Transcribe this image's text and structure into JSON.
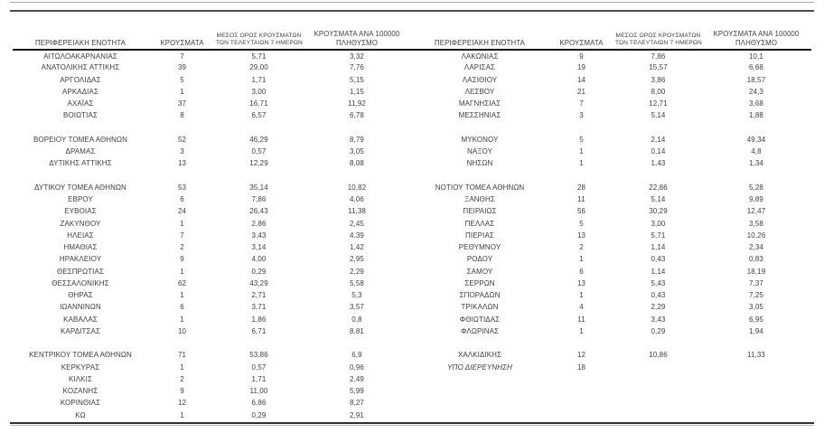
{
  "page": {
    "background": "#ffffff",
    "text_color": "#3d3d3d",
    "header_rule_color": "#151515",
    "top_rule_colors": [
      "#a8a8a8",
      "#4d4d4d"
    ],
    "bottom_rule_colors": [
      "#303030",
      "#b8b8b8"
    ]
  },
  "table": {
    "headers": {
      "region": "ΠΕΡΙΦΕΡΕΙΑΚΗ ΕΝΟΤΗΤΑ",
      "cases": "ΚΡΟΥΣΜΑΤΑ",
      "avg7_line1": "ΜΕΣΟΣ ΟΡΟΣ ΚΡΟΥΣΜΑΤΩΝ",
      "avg7_line2": "ΤΩΝ ΤΕΛΕΥΤΑΙΩΝ 7 ΗΜΕΡΩΝ",
      "per100k_line1": "ΚΡΟΥΣΜΑΤΑ ΑΝΑ 100000",
      "per100k_line2": "ΠΛΗΘΥΣΜΟ"
    },
    "italic_row_label": "ΥΠΟ ΔΙΕΡΕΥΝΗΣΗ",
    "rows": [
      [
        "ΑΙΤΩΛΟΑΚΑΡΝΑΝΙΑΣ",
        "7",
        "5,71",
        "3,32",
        "ΛΑΚΩΝΙΑΣ",
        "9",
        "7,86",
        "10,1"
      ],
      [
        "ΑΝΑΤΟΛΙΚΗΣ ΑΤΤΙΚΗΣ",
        "39",
        "29,00",
        "7,76",
        "ΛΑΡΙΣΑΣ",
        "19",
        "15,57",
        "6,68"
      ],
      [
        "ΑΡΓΟΛΙΔΑΣ",
        "5",
        "1,71",
        "5,15",
        "ΛΑΣΙΘΙΟΥ",
        "14",
        "3,86",
        "18,57"
      ],
      [
        "ΑΡΚΑΔΙΑΣ",
        "1",
        "3,00",
        "1,15",
        "ΛΕΣΒΟΥ",
        "21",
        "8,00",
        "24,3"
      ],
      [
        "ΑΧΑΪΑΣ",
        "37",
        "16,71",
        "11,92",
        "ΜΑΓΝΗΣΙΑΣ",
        "7",
        "12,71",
        "3,68"
      ],
      [
        "ΒΟΙΩΤΙΑΣ",
        "8",
        "6,57",
        "6,78",
        "ΜΕΣΣΗΝΙΑΣ",
        "3",
        "5,14",
        "1,88"
      ],
      [
        "",
        "",
        "",
        "",
        "",
        "",
        "",
        ""
      ],
      [
        "ΒΟΡΕΙΟΥ ΤΟΜΕΑ ΑΘΗΝΩΝ",
        "52",
        "46,29",
        "8,79",
        "ΜΥΚΟΝΟΥ",
        "5",
        "2,14",
        "49,34"
      ],
      [
        "ΔΡΑΜΑΣ",
        "3",
        "0,57",
        "3,05",
        "ΝΑΞΟΥ",
        "1",
        "0,14",
        "4,8"
      ],
      [
        "ΔΥΤΙΚΗΣ ΑΤΤΙΚΗΣ",
        "13",
        "12,29",
        "8,08",
        "ΝΗΣΩΝ",
        "1",
        "1,43",
        "1,34"
      ],
      [
        "",
        "",
        "",
        "",
        "",
        "",
        "",
        ""
      ],
      [
        "ΔΥΤΙΚΟΥ ΤΟΜΕΑ ΑΘΗΝΩΝ",
        "53",
        "35,14",
        "10,82",
        "ΝΟΤΙΟΥ ΤΟΜΕΑ ΑΘΗΝΩΝ",
        "28",
        "22,86",
        "5,28"
      ],
      [
        "ΕΒΡΟΥ",
        "6",
        "7,86",
        "4,06",
        "ΞΑΝΘΗΣ",
        "11",
        "5,14",
        "9,89"
      ],
      [
        "ΕΥΒΟΙΑΣ",
        "24",
        "26,43",
        "11,38",
        "ΠΕΙΡΑΙΩΣ",
        "56",
        "30,29",
        "12,47"
      ],
      [
        "ΖΑΚΥΝΘΟΥ",
        "1",
        "2,86",
        "2,45",
        "ΠΕΛΛΑΣ",
        "5",
        "3,00",
        "3,58"
      ],
      [
        "ΗΛΕΙΑΣ",
        "7",
        "3,43",
        "4,39",
        "ΠΙΕΡΙΑΣ",
        "13",
        "5,71",
        "10,26"
      ],
      [
        "ΗΜΑΘΙΑΣ",
        "2",
        "3,14",
        "1,42",
        "ΡΕΘΥΜΝΟΥ",
        "2",
        "1,14",
        "2,34"
      ],
      [
        "ΗΡΑΚΛΕΙΟΥ",
        "9",
        "4,00",
        "2,95",
        "ΡΟΔΟΥ",
        "1",
        "0,43",
        "0,83"
      ],
      [
        "ΘΕΣΠΡΩΤΙΑΣ",
        "1",
        "0,29",
        "2,29",
        "ΣΑΜΟΥ",
        "6",
        "1,14",
        "18,19"
      ],
      [
        "ΘΕΣΣΑΛΟΝΙΚΗΣ",
        "62",
        "43,29",
        "5,58",
        "ΣΕΡΡΩΝ",
        "13",
        "5,43",
        "7,37"
      ],
      [
        "ΘΗΡΑΣ",
        "1",
        "2,71",
        "5,3",
        "ΣΠΟΡΑΔΩΝ",
        "1",
        "0,43",
        "7,25"
      ],
      [
        "ΙΩΑΝΝΙΝΩΝ",
        "6",
        "3,71",
        "3,57",
        "ΤΡΙΚΑΛΩΝ",
        "4",
        "2,29",
        "3,05"
      ],
      [
        "ΚΑΒΑΛΑΣ",
        "1",
        "1,86",
        "0,8",
        "ΦΘΙΩΤΙΔΑΣ",
        "11",
        "3,43",
        "6,95"
      ],
      [
        "ΚΑΡΔΙΤΣΑΣ",
        "10",
        "6,71",
        "8,81",
        "ΦΛΩΡΙΝΑΣ",
        "1",
        "0,29",
        "1,94"
      ],
      [
        "",
        "",
        "",
        "",
        "",
        "",
        "",
        ""
      ],
      [
        "ΚΕΝΤΡΙΚΟΥ ΤΟΜΕΑ ΑΘΗΝΩΝ",
        "71",
        "53,86",
        "6,9",
        "ΧΑΛΚΙΔΙΚΗΣ",
        "12",
        "10,86",
        "11,33"
      ],
      [
        "ΚΕΡΚΥΡΑΣ",
        "1",
        "0,57",
        "0,96",
        "ΥΠΟ ΔΙΕΡΕΥΝΗΣΗ",
        "18",
        "",
        ""
      ],
      [
        "ΚΙΛΚΙΣ",
        "2",
        "1,71",
        "2,49",
        "",
        "",
        "",
        ""
      ],
      [
        "ΚΟΖΑΝΗΣ",
        "9",
        "11,00",
        "5,99",
        "",
        "",
        "",
        ""
      ],
      [
        "ΚΟΡΙΝΘΙΑΣ",
        "12",
        "6,86",
        "8,27",
        "",
        "",
        "",
        ""
      ],
      [
        "ΚΩ",
        "1",
        "0,29",
        "2,91",
        "",
        "",
        "",
        ""
      ]
    ]
  }
}
